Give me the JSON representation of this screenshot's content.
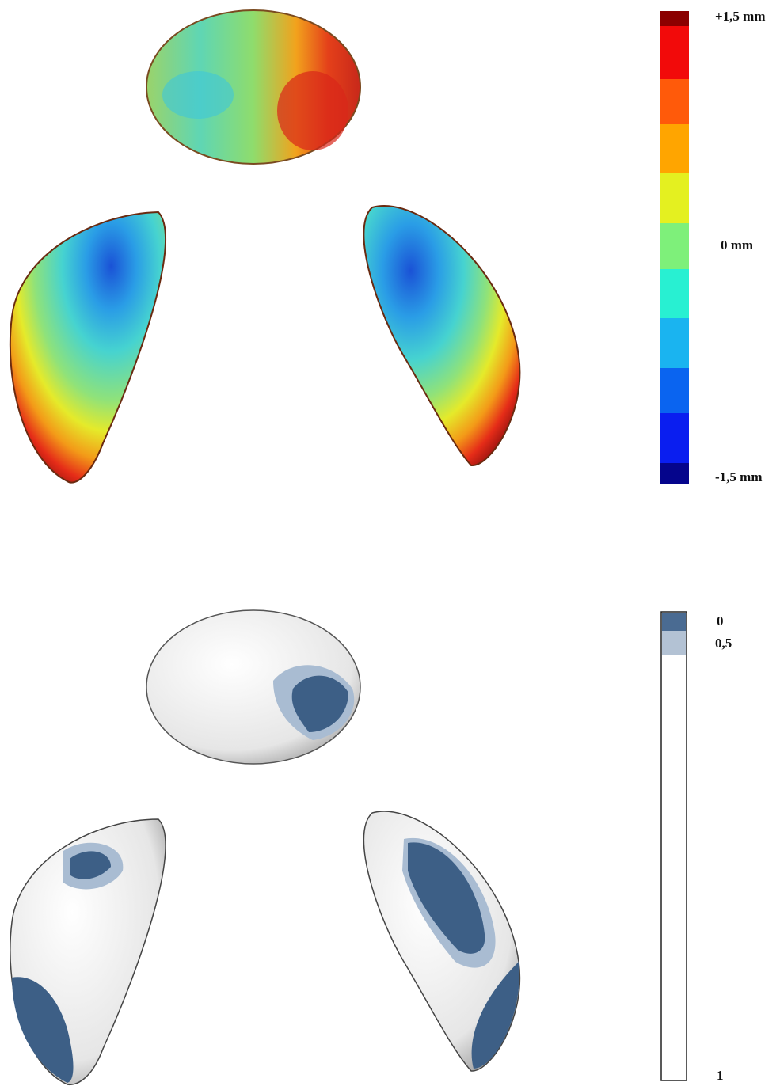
{
  "deviation_scale": {
    "top_label": "+1,5 mm",
    "middle_label": "0 mm",
    "bottom_label": "-1,5 mm"
  },
  "probability_scale": {
    "top_label": "0",
    "second_label": "0,5",
    "bottom_label": "1"
  }
}
